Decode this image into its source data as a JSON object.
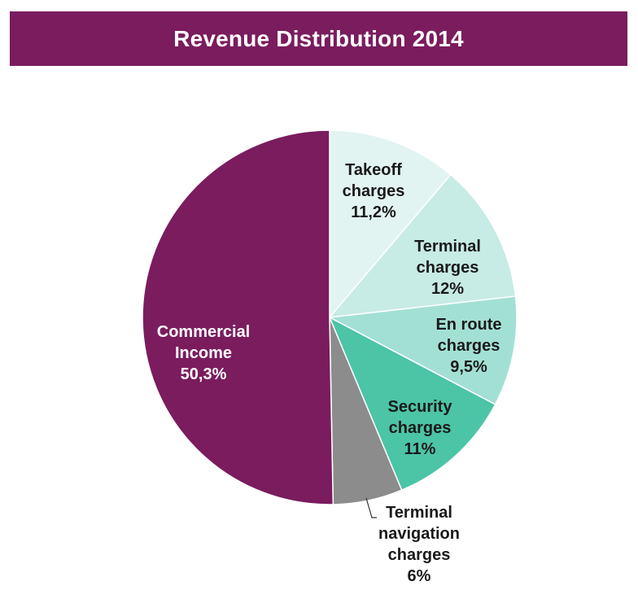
{
  "chart_data": {
    "type": "pie",
    "title": "Revenue Distribution 2014",
    "start": "12 o'clock",
    "direction": "clockwise",
    "slices": [
      {
        "key": "takeoff",
        "label_lines": [
          "Takeoff",
          "charges"
        ],
        "value_label": "11,2%",
        "value": 11.2,
        "color": "#e2f4f2",
        "text_color": "#1a1a1a"
      },
      {
        "key": "terminal",
        "label_lines": [
          "Terminal",
          "charges"
        ],
        "value_label": "12%",
        "value": 12,
        "color": "#c7ebe5",
        "text_color": "#1a1a1a"
      },
      {
        "key": "enroute",
        "label_lines": [
          "En route",
          "charges"
        ],
        "value_label": "9,5%",
        "value": 9.5,
        "color": "#a3e0d4",
        "text_color": "#1a1a1a"
      },
      {
        "key": "security",
        "label_lines": [
          "Security",
          "charges"
        ],
        "value_label": "11%",
        "value": 11,
        "color": "#4cc4a6",
        "text_color": "#1a1a1a"
      },
      {
        "key": "terminal-navigation",
        "label_lines": [
          "Terminal",
          "navigation",
          "charges"
        ],
        "value_label": "6%",
        "value": 6,
        "color": "#8c8c8c",
        "text_color": "#1a1a1a"
      },
      {
        "key": "commercial",
        "label_lines": [
          "Commercial",
          "Income"
        ],
        "value_label": "50,3%",
        "value": 50.3,
        "color": "#7a1c5e",
        "text_color": "#ffffff"
      }
    ]
  }
}
